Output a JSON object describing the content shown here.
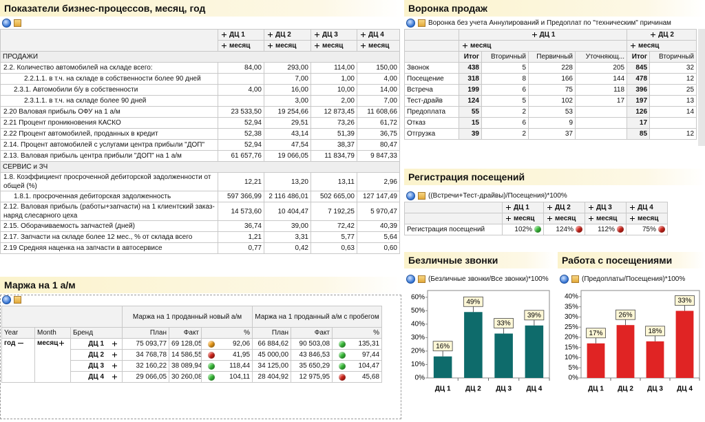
{
  "kpi_table": {
    "title": "Показатели бизнес-процессов, месяц, год",
    "columns": [
      "ДЦ 1",
      "ДЦ 2",
      "ДЦ 3",
      "ДЦ 4"
    ],
    "period": "месяц",
    "rows": [
      {
        "section": "ПРОДАЖИ"
      },
      {
        "label": "2.2. Количество автомобилей на складе всего:",
        "values": [
          "84,00",
          "293,00",
          "114,00",
          "150,00"
        ]
      },
      {
        "label": "2.2.1.1. в т.ч. на складе в собственности более 90 дней",
        "values": [
          null,
          "7,00",
          "1,00",
          "4,00"
        ]
      },
      {
        "label": "2.3.1. Автомобили б/у в собственности",
        "values": [
          "4,00",
          "16,00",
          "10,00",
          "14,00"
        ]
      },
      {
        "label": "2.3.1.1. в т.ч. на складе более 90 дней",
        "values": [
          null,
          "3,00",
          "2,00",
          "7,00"
        ]
      },
      {
        "label": "2.20 Валовая прибыль ОФУ на 1 а/м",
        "values": [
          "23 533,50",
          "19 254,66",
          "12 873,45",
          "11 608,66"
        ]
      },
      {
        "label": "2.21 Процент проникновения КАСКО",
        "values": [
          "52,94",
          "29,51",
          "73,26",
          "61,72"
        ]
      },
      {
        "label": "2.22 Процент автомобилей, проданных в кредит",
        "values": [
          "52,38",
          "43,14",
          "51,39",
          "36,75"
        ]
      },
      {
        "label": "2.14. Процент автомобилей с услугами центра прибыли \"ДОП\"",
        "values": [
          "52,94",
          "47,54",
          "38,37",
          "80,47"
        ]
      },
      {
        "label": "2.13. Валовая прибыль центра прибыли \"ДОП\" на 1 а/м",
        "values": [
          "61 657,76",
          "19 066,05",
          "11 834,79",
          "9 847,33"
        ]
      },
      {
        "section": "СЕРВИС и ЗЧ"
      },
      {
        "label": "1.8. Коэффициент просроченной дебиторской задолженности от общей (%)",
        "values": [
          "12,21",
          "13,20",
          "13,11",
          "2,96"
        ]
      },
      {
        "label": "1.8.1. просроченная дебиторская задолженность",
        "values": [
          "597 366,99",
          "2 116 486,01",
          "502 665,00",
          "127 147,49"
        ]
      },
      {
        "label": "2.12. Валовая прибыль (работы+запчасти) на 1 клиентский заказ-наряд слесарного цеха",
        "values": [
          "14 573,60",
          "10 404,47",
          "7 192,25",
          "5 970,47"
        ]
      },
      {
        "label": "2.15. Оборачиваемость запчастей (дней)",
        "values": [
          "36,74",
          "39,00",
          "72,42",
          "40,39"
        ]
      },
      {
        "label": "2.17. Запчасти на складе более 12 мес., % от склада всего",
        "values": [
          "1,21",
          "3,31",
          "5,77",
          "5,64"
        ]
      },
      {
        "label": "2.19 Средняя наценка на запчасти в автосервисе",
        "values": [
          "0,77",
          "0,42",
          "0,63",
          "0,60"
        ]
      }
    ]
  },
  "margin_table": {
    "title": "Маржа на 1 а/м",
    "row_headers": [
      "Year",
      "Month",
      "Бренд"
    ],
    "year": "год",
    "month": "месяц",
    "groups": [
      {
        "name": "Маржа на 1 проданный новый а/м",
        "columns": [
          "План",
          "Факт",
          "%"
        ]
      },
      {
        "name": "Маржа на 1 проданный а/м с пробегом",
        "columns": [
          "План",
          "Факт",
          "%"
        ]
      }
    ],
    "rows": [
      {
        "brand": "ДЦ 1",
        "values": [
          [
            "75 093,77",
            "69 128,05",
            "92,06"
          ],
          [
            "66 884,62",
            "90 503,08",
            "135,31"
          ]
        ],
        "status": [
          "#f4a21c",
          "#3cc43c"
        ]
      },
      {
        "brand": "ДЦ 2",
        "values": [
          [
            "34 768,78",
            "14 586,55",
            "41,95"
          ],
          [
            "45 000,00",
            "43 846,53",
            "97,44"
          ]
        ],
        "status": [
          "#d8261c",
          "#3cc43c"
        ]
      },
      {
        "brand": "ДЦ 3",
        "values": [
          [
            "32 160,22",
            "38 089,94",
            "118,44"
          ],
          [
            "34 125,00",
            "35 650,29",
            "104,47"
          ]
        ],
        "status": [
          "#3cc43c",
          "#3cc43c"
        ]
      },
      {
        "brand": "ДЦ 4",
        "values": [
          [
            "29 066,05",
            "30 260,08",
            "104,11"
          ],
          [
            "28 404,92",
            "12 975,95",
            "45,68"
          ]
        ],
        "status": [
          "#3cc43c",
          "#d8261c"
        ]
      }
    ]
  },
  "funnel": {
    "title": "Воронка продаж",
    "subtitle": "Воронка без учета Аннулирований и Предоплат по \"техническим\" причинам",
    "groups": [
      {
        "name": "ДЦ 1",
        "period": "месяц",
        "columns": [
          "Итог",
          "Вторичный",
          "Первичный",
          "Уточняющ..."
        ]
      },
      {
        "name": "ДЦ 2",
        "period": "месяц",
        "columns": [
          "Итог",
          "Вторичный"
        ]
      }
    ],
    "rows": [
      {
        "label": "Звонок",
        "values": [
          [
            438,
            5,
            228,
            205
          ],
          [
            845,
            32
          ]
        ]
      },
      {
        "label": "Посещение",
        "values": [
          [
            318,
            8,
            166,
            144
          ],
          [
            478,
            12
          ]
        ]
      },
      {
        "label": "Встреча",
        "values": [
          [
            199,
            6,
            75,
            118
          ],
          [
            396,
            25
          ]
        ]
      },
      {
        "label": "Тест-драйв",
        "values": [
          [
            124,
            5,
            102,
            17
          ],
          [
            197,
            13
          ]
        ]
      },
      {
        "label": "Предоплата",
        "values": [
          [
            55,
            2,
            53,
            null
          ],
          [
            126,
            14
          ]
        ]
      },
      {
        "label": "Отказ",
        "values": [
          [
            15,
            6,
            9,
            null
          ],
          [
            17,
            null
          ]
        ]
      },
      {
        "label": "Отгрузка",
        "values": [
          [
            39,
            2,
            37,
            null
          ],
          [
            85,
            12
          ]
        ]
      }
    ]
  },
  "registration": {
    "title": "Регистрация посещений",
    "formula": "((Встречи+Тест-драйвы)/Посещения)*100%",
    "columns": [
      "ДЦ 1",
      "ДЦ 2",
      "ДЦ 3",
      "ДЦ 4"
    ],
    "period": "месяц",
    "row_label": "Регистрация посещений",
    "values": [
      "102%",
      "124%",
      "112%",
      "75%"
    ],
    "status": [
      "#3cc43c",
      "#d8261c",
      "#d8261c",
      "#d8261c"
    ]
  },
  "chart_data": [
    {
      "type": "bar",
      "title": "Безличные звонки",
      "formula": "(Безличные звонки/Все звонки)*100%",
      "categories": [
        "ДЦ 1",
        "ДЦ 2",
        "ДЦ 3",
        "ДЦ 4"
      ],
      "values": [
        16,
        49,
        33,
        39
      ],
      "value_labels": [
        "16%",
        "49%",
        "33%",
        "39%"
      ],
      "color": "#0e6b6b",
      "ylim": [
        0,
        65
      ],
      "yticks": [
        {
          "value": 0,
          "label": "0%"
        },
        {
          "value": 10,
          "label": "10%"
        },
        {
          "value": 20,
          "label": "20%"
        },
        {
          "value": 30,
          "label": "30%"
        },
        {
          "value": 40,
          "label": "40%"
        },
        {
          "value": 50,
          "label": "50%"
        },
        {
          "value": 60,
          "label": "60%"
        }
      ],
      "grid": false
    },
    {
      "type": "bar",
      "title": "Работа с посещениями",
      "formula": "(Предоплаты/Посещения)*100%",
      "categories": [
        "ДЦ 1",
        "ДЦ 2",
        "ДЦ 3",
        "ДЦ 4"
      ],
      "values": [
        17,
        26,
        18,
        33
      ],
      "value_labels": [
        "17%",
        "26%",
        "18%",
        "33%"
      ],
      "color": "#e02424",
      "ylim": [
        0,
        43
      ],
      "yticks": [
        {
          "value": 0,
          "label": "0%"
        },
        {
          "value": 5,
          "label": "5%"
        },
        {
          "value": 10,
          "label": "10%"
        },
        {
          "value": 15,
          "label": "15%"
        },
        {
          "value": 20,
          "label": "20%"
        },
        {
          "value": 25,
          "label": "25%"
        },
        {
          "value": 30,
          "label": "30%"
        },
        {
          "value": 35,
          "label": "35%"
        },
        {
          "value": 40,
          "label": "40%"
        }
      ],
      "grid": false
    }
  ]
}
